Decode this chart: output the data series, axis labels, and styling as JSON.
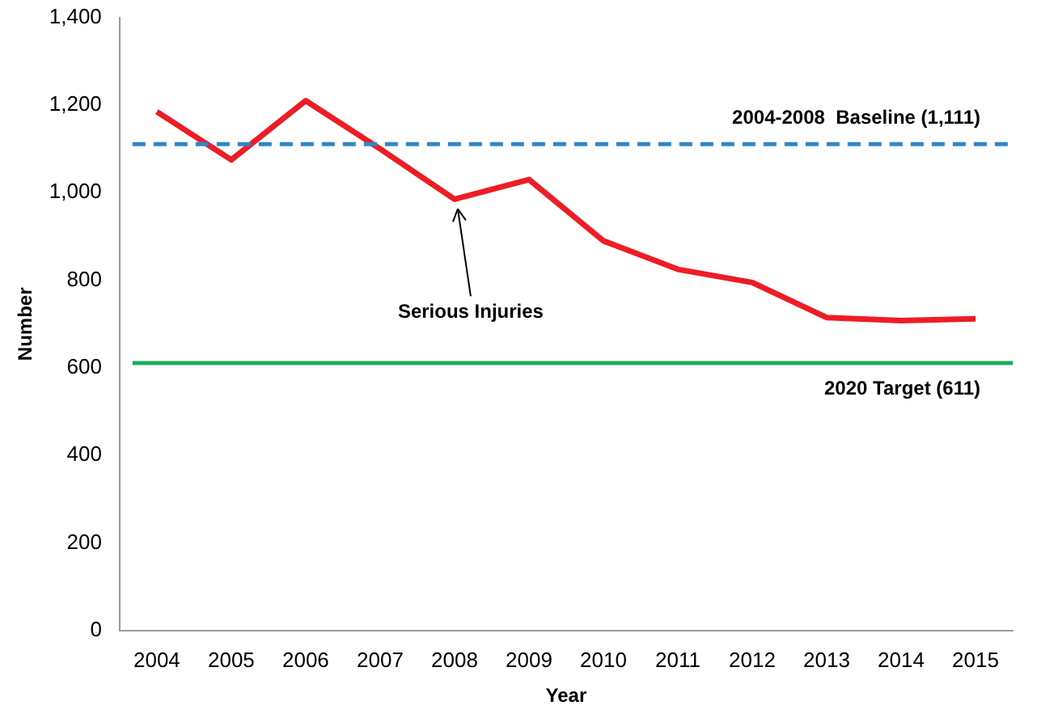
{
  "chart_data": {
    "type": "line",
    "xlabel": "Year",
    "ylabel": "Number",
    "categories": [
      "2004",
      "2005",
      "2006",
      "2007",
      "2008",
      "2009",
      "2010",
      "2011",
      "2012",
      "2013",
      "2014",
      "2015"
    ],
    "series": [
      {
        "color": "#ee1c25",
        "values": [
          1185,
          1075,
          1210,
          1100,
          985,
          1030,
          890,
          825,
          795,
          715,
          708,
          712
        ]
      }
    ],
    "ylim": [
      0,
      1400
    ],
    "yticks": [
      0,
      200,
      400,
      600,
      800,
      {
        "value": 1000,
        "label": "1,000"
      },
      {
        "value": 1200,
        "label": "1,200"
      },
      {
        "value": 1400,
        "label": "1,400"
      }
    ],
    "ref_lines": [
      {
        "axis": "y",
        "value": 1111,
        "label": "2004-2008  Baseline (1,111)",
        "color": "#2e86c8",
        "line_style": "dashed"
      },
      {
        "axis": "y",
        "value": 611,
        "label": "2020 Target (611)",
        "color": "#1aab5c",
        "line_style": "solid"
      }
    ],
    "annotations": [
      {
        "text": "Serious Injuries",
        "x": "2008",
        "y": 985
      }
    ],
    "grid": false,
    "legend": false,
    "marker": "none",
    "line_style": "solid"
  }
}
